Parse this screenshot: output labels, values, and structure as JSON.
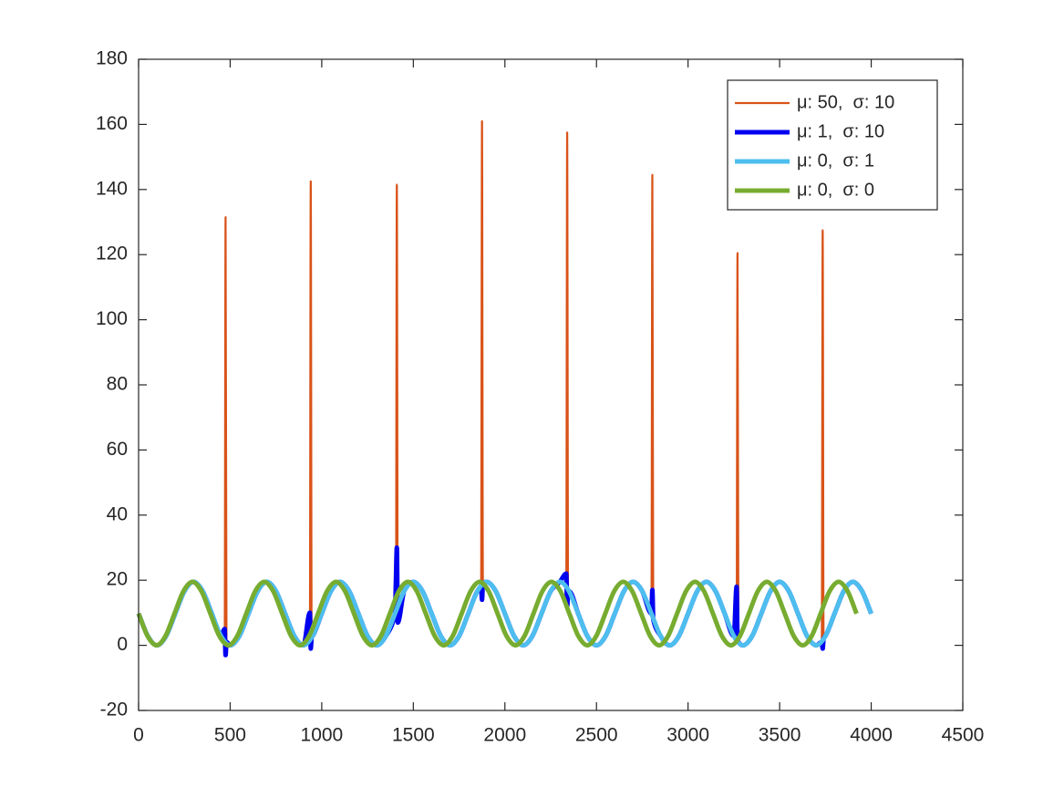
{
  "chart_data": {
    "type": "line",
    "xlim": [
      0,
      4500
    ],
    "xticks": [
      0,
      500,
      1000,
      1500,
      2000,
      2500,
      3000,
      3500,
      4000,
      4500
    ],
    "ylim": [
      -20,
      180
    ],
    "yticks": [
      -20,
      0,
      20,
      40,
      60,
      80,
      100,
      120,
      140,
      160,
      180
    ],
    "legend_position": "upper right",
    "series": [
      {
        "name": "μ: 50,  σ: 10",
        "color": "#d95319",
        "x": [
          0,
          50,
          100,
          150,
          200,
          250,
          300,
          350,
          400,
          450,
          470,
          475,
          480,
          500,
          550,
          600,
          650,
          700,
          750,
          800,
          850,
          900,
          935,
          940,
          945,
          950,
          1000,
          1050,
          1100,
          1150,
          1200,
          1250,
          1300,
          1350,
          1400,
          1405,
          1410,
          1415,
          1450,
          1500,
          1550,
          1600,
          1650,
          1700,
          1750,
          1800,
          1850,
          1870,
          1875,
          1880,
          1900,
          1950,
          2000,
          2050,
          2100,
          2150,
          2200,
          2250,
          2300,
          2335,
          2340,
          2345,
          2350,
          2400,
          2450,
          2500,
          2550,
          2600,
          2650,
          2700,
          2750,
          2800,
          2805,
          2810,
          2850,
          2900,
          2950,
          3000,
          3050,
          3100,
          3150,
          3200,
          3250,
          3265,
          3270,
          3275,
          3300,
          3350,
          3400,
          3450,
          3500,
          3550,
          3600,
          3650,
          3700,
          3730,
          3735,
          3740,
          3750,
          3800,
          3850,
          3900,
          3950,
          4000
        ],
        "values": [
          9.75,
          2.86,
          0,
          2.86,
          9.75,
          16.64,
          19.5,
          16.64,
          9.75,
          2.86,
          1.2,
          131.5,
          0.5,
          0,
          2.86,
          9.75,
          16.64,
          19.5,
          16.64,
          9.75,
          2.86,
          0,
          1.5,
          142.5,
          2.2,
          2.86,
          9.75,
          16.64,
          19.5,
          16.64,
          9.75,
          2.86,
          0,
          2.86,
          9.75,
          8,
          141.5,
          7,
          16.64,
          19.5,
          16.64,
          9.75,
          2.86,
          0,
          2.86,
          9.75,
          16.64,
          18.5,
          161,
          18.9,
          19.5,
          16.64,
          9.75,
          2.86,
          0,
          2.86,
          9.75,
          16.64,
          19.5,
          17.8,
          157.5,
          14,
          16.64,
          9.75,
          2.86,
          0,
          2.86,
          9.75,
          16.64,
          19.5,
          16.64,
          9.75,
          144.5,
          8.5,
          2.86,
          0,
          2.86,
          9.75,
          16.64,
          19.5,
          16.64,
          9.75,
          2.86,
          1.3,
          120.5,
          0.9,
          0,
          2.86,
          9.75,
          16.64,
          19.5,
          16.64,
          9.75,
          2.86,
          0,
          1.2,
          127.5,
          1.7,
          2.86,
          9.75,
          16.64,
          19.5,
          16.64,
          9.75
        ]
      },
      {
        "name": "μ: 1,  σ: 10",
        "color": "#0000f0",
        "x": [
          0,
          50,
          100,
          150,
          200,
          250,
          300,
          350,
          400,
          450,
          470,
          475,
          480,
          500,
          550,
          600,
          650,
          700,
          750,
          800,
          850,
          900,
          935,
          940,
          945,
          950,
          1000,
          1050,
          1100,
          1150,
          1200,
          1250,
          1300,
          1350,
          1400,
          1405,
          1410,
          1415,
          1450,
          1500,
          1550,
          1600,
          1650,
          1700,
          1750,
          1800,
          1850,
          1870,
          1875,
          1880,
          1900,
          1950,
          2000,
          2050,
          2100,
          2150,
          2200,
          2250,
          2300,
          2335,
          2340,
          2345,
          2350,
          2400,
          2450,
          2500,
          2550,
          2600,
          2650,
          2700,
          2750,
          2800,
          2805,
          2810,
          2850,
          2900,
          2950,
          3000,
          3050,
          3100,
          3150,
          3200,
          3250,
          3265,
          3270,
          3275,
          3300,
          3350,
          3400,
          3450,
          3500,
          3550,
          3600,
          3650,
          3700,
          3730,
          3735,
          3740,
          3750,
          3800,
          3850,
          3900,
          3950,
          4000
        ],
        "values": [
          9.75,
          2.86,
          0,
          2.86,
          9.75,
          16.64,
          19.5,
          16.64,
          9.75,
          2.86,
          5,
          -3,
          1,
          0,
          2.86,
          9.75,
          16.64,
          19.5,
          16.64,
          9.75,
          2.86,
          0,
          10,
          -1,
          2.5,
          2.86,
          9.75,
          16.64,
          19.5,
          16.64,
          9.75,
          2.86,
          0,
          2.86,
          9.75,
          20,
          30,
          7,
          16.64,
          19.5,
          16.64,
          9.75,
          2.86,
          0,
          2.86,
          9.75,
          16.64,
          18,
          14,
          19,
          19.5,
          16.64,
          9.75,
          2.86,
          0,
          2.86,
          9.75,
          16.64,
          19.5,
          22,
          12,
          16,
          16.64,
          9.75,
          2.86,
          0,
          2.86,
          9.75,
          16.64,
          19.5,
          16.64,
          9.75,
          17,
          8,
          2.86,
          0,
          2.86,
          9.75,
          16.64,
          19.5,
          16.64,
          9.75,
          2.86,
          18,
          2,
          1,
          0,
          2.86,
          9.75,
          16.64,
          19.5,
          16.64,
          9.75,
          2.86,
          0,
          1,
          -1,
          2,
          2.86,
          9.75,
          16.64,
          19.5,
          16.64,
          9.75
        ]
      },
      {
        "name": "μ: 0,  σ: 1",
        "color": "#4dbeee",
        "x": [
          0,
          50,
          100,
          150,
          200,
          250,
          300,
          350,
          400,
          450,
          500,
          550,
          600,
          650,
          700,
          750,
          800,
          850,
          900,
          950,
          1000,
          1050,
          1100,
          1150,
          1200,
          1250,
          1300,
          1350,
          1400,
          1450,
          1500,
          1550,
          1600,
          1650,
          1700,
          1750,
          1800,
          1850,
          1900,
          1950,
          2000,
          2050,
          2100,
          2150,
          2200,
          2250,
          2300,
          2350,
          2400,
          2450,
          2500,
          2550,
          2600,
          2650,
          2700,
          2750,
          2800,
          2850,
          2900,
          2950,
          3000,
          3050,
          3100,
          3150,
          3200,
          3250,
          3300,
          3350,
          3400,
          3450,
          3500,
          3550,
          3600,
          3650,
          3700,
          3750,
          3800,
          3850,
          3900,
          3950,
          4000
        ],
        "values": [
          9.75,
          2.86,
          0,
          2.86,
          9.75,
          16.64,
          19.5,
          16.64,
          9.75,
          2.86,
          0,
          2.86,
          9.75,
          16.64,
          19.5,
          16.64,
          9.75,
          2.86,
          0,
          2.86,
          9.75,
          16.64,
          19.5,
          16.64,
          9.75,
          2.86,
          0,
          2.86,
          9.75,
          16.64,
          19.5,
          16.64,
          9.75,
          2.86,
          0,
          2.86,
          9.75,
          16.64,
          19.5,
          16.64,
          9.75,
          2.86,
          0,
          2.86,
          9.75,
          16.64,
          19.5,
          16.64,
          9.75,
          2.86,
          0,
          2.86,
          9.75,
          16.64,
          19.5,
          16.64,
          9.75,
          2.86,
          0,
          2.86,
          9.75,
          16.64,
          19.5,
          16.64,
          9.75,
          2.86,
          0,
          2.86,
          9.75,
          16.64,
          19.5,
          16.64,
          9.75,
          2.86,
          0,
          2.86,
          9.75,
          16.64,
          19.5,
          16.64,
          9.75
        ]
      },
      {
        "name": "μ: 0,  σ: 0",
        "color": "#77ac30",
        "x": [
          0,
          49,
          98,
          147,
          196,
          245,
          294,
          343,
          392,
          441,
          490,
          539,
          588,
          637,
          686,
          735,
          784,
          833,
          882,
          931,
          980,
          1029,
          1078,
          1127,
          1176,
          1225,
          1274,
          1323,
          1372,
          1421,
          1470,
          1519,
          1568,
          1617,
          1666,
          1715,
          1764,
          1813,
          1862,
          1911,
          1960,
          2009,
          2058,
          2107,
          2156,
          2205,
          2254,
          2303,
          2352,
          2401,
          2450,
          2499,
          2548,
          2597,
          2646,
          2695,
          2744,
          2793,
          2842,
          2891,
          2940,
          2989,
          3038,
          3087,
          3136,
          3185,
          3234,
          3283,
          3332,
          3381,
          3430,
          3479,
          3528,
          3577,
          3626,
          3675,
          3724,
          3773,
          3822,
          3871,
          3920
        ],
        "values": [
          9.75,
          2.86,
          0,
          2.86,
          9.75,
          16.64,
          19.5,
          16.64,
          9.75,
          2.86,
          0,
          2.86,
          9.75,
          16.64,
          19.5,
          16.64,
          9.75,
          2.86,
          0,
          2.86,
          9.75,
          16.64,
          19.5,
          16.64,
          9.75,
          2.86,
          0,
          2.86,
          9.75,
          16.64,
          19.5,
          16.64,
          9.75,
          2.86,
          0,
          2.86,
          9.75,
          16.64,
          19.5,
          16.64,
          9.75,
          2.86,
          0,
          2.86,
          9.75,
          16.64,
          19.5,
          16.64,
          9.75,
          2.86,
          0,
          2.86,
          9.75,
          16.64,
          19.5,
          16.64,
          9.75,
          2.86,
          0,
          2.86,
          9.75,
          16.64,
          19.5,
          16.64,
          9.75,
          2.86,
          0,
          2.86,
          9.75,
          16.64,
          19.5,
          16.64,
          9.75,
          2.86,
          0,
          2.86,
          9.75,
          16.64,
          19.5,
          16.64,
          9.75
        ]
      }
    ]
  }
}
